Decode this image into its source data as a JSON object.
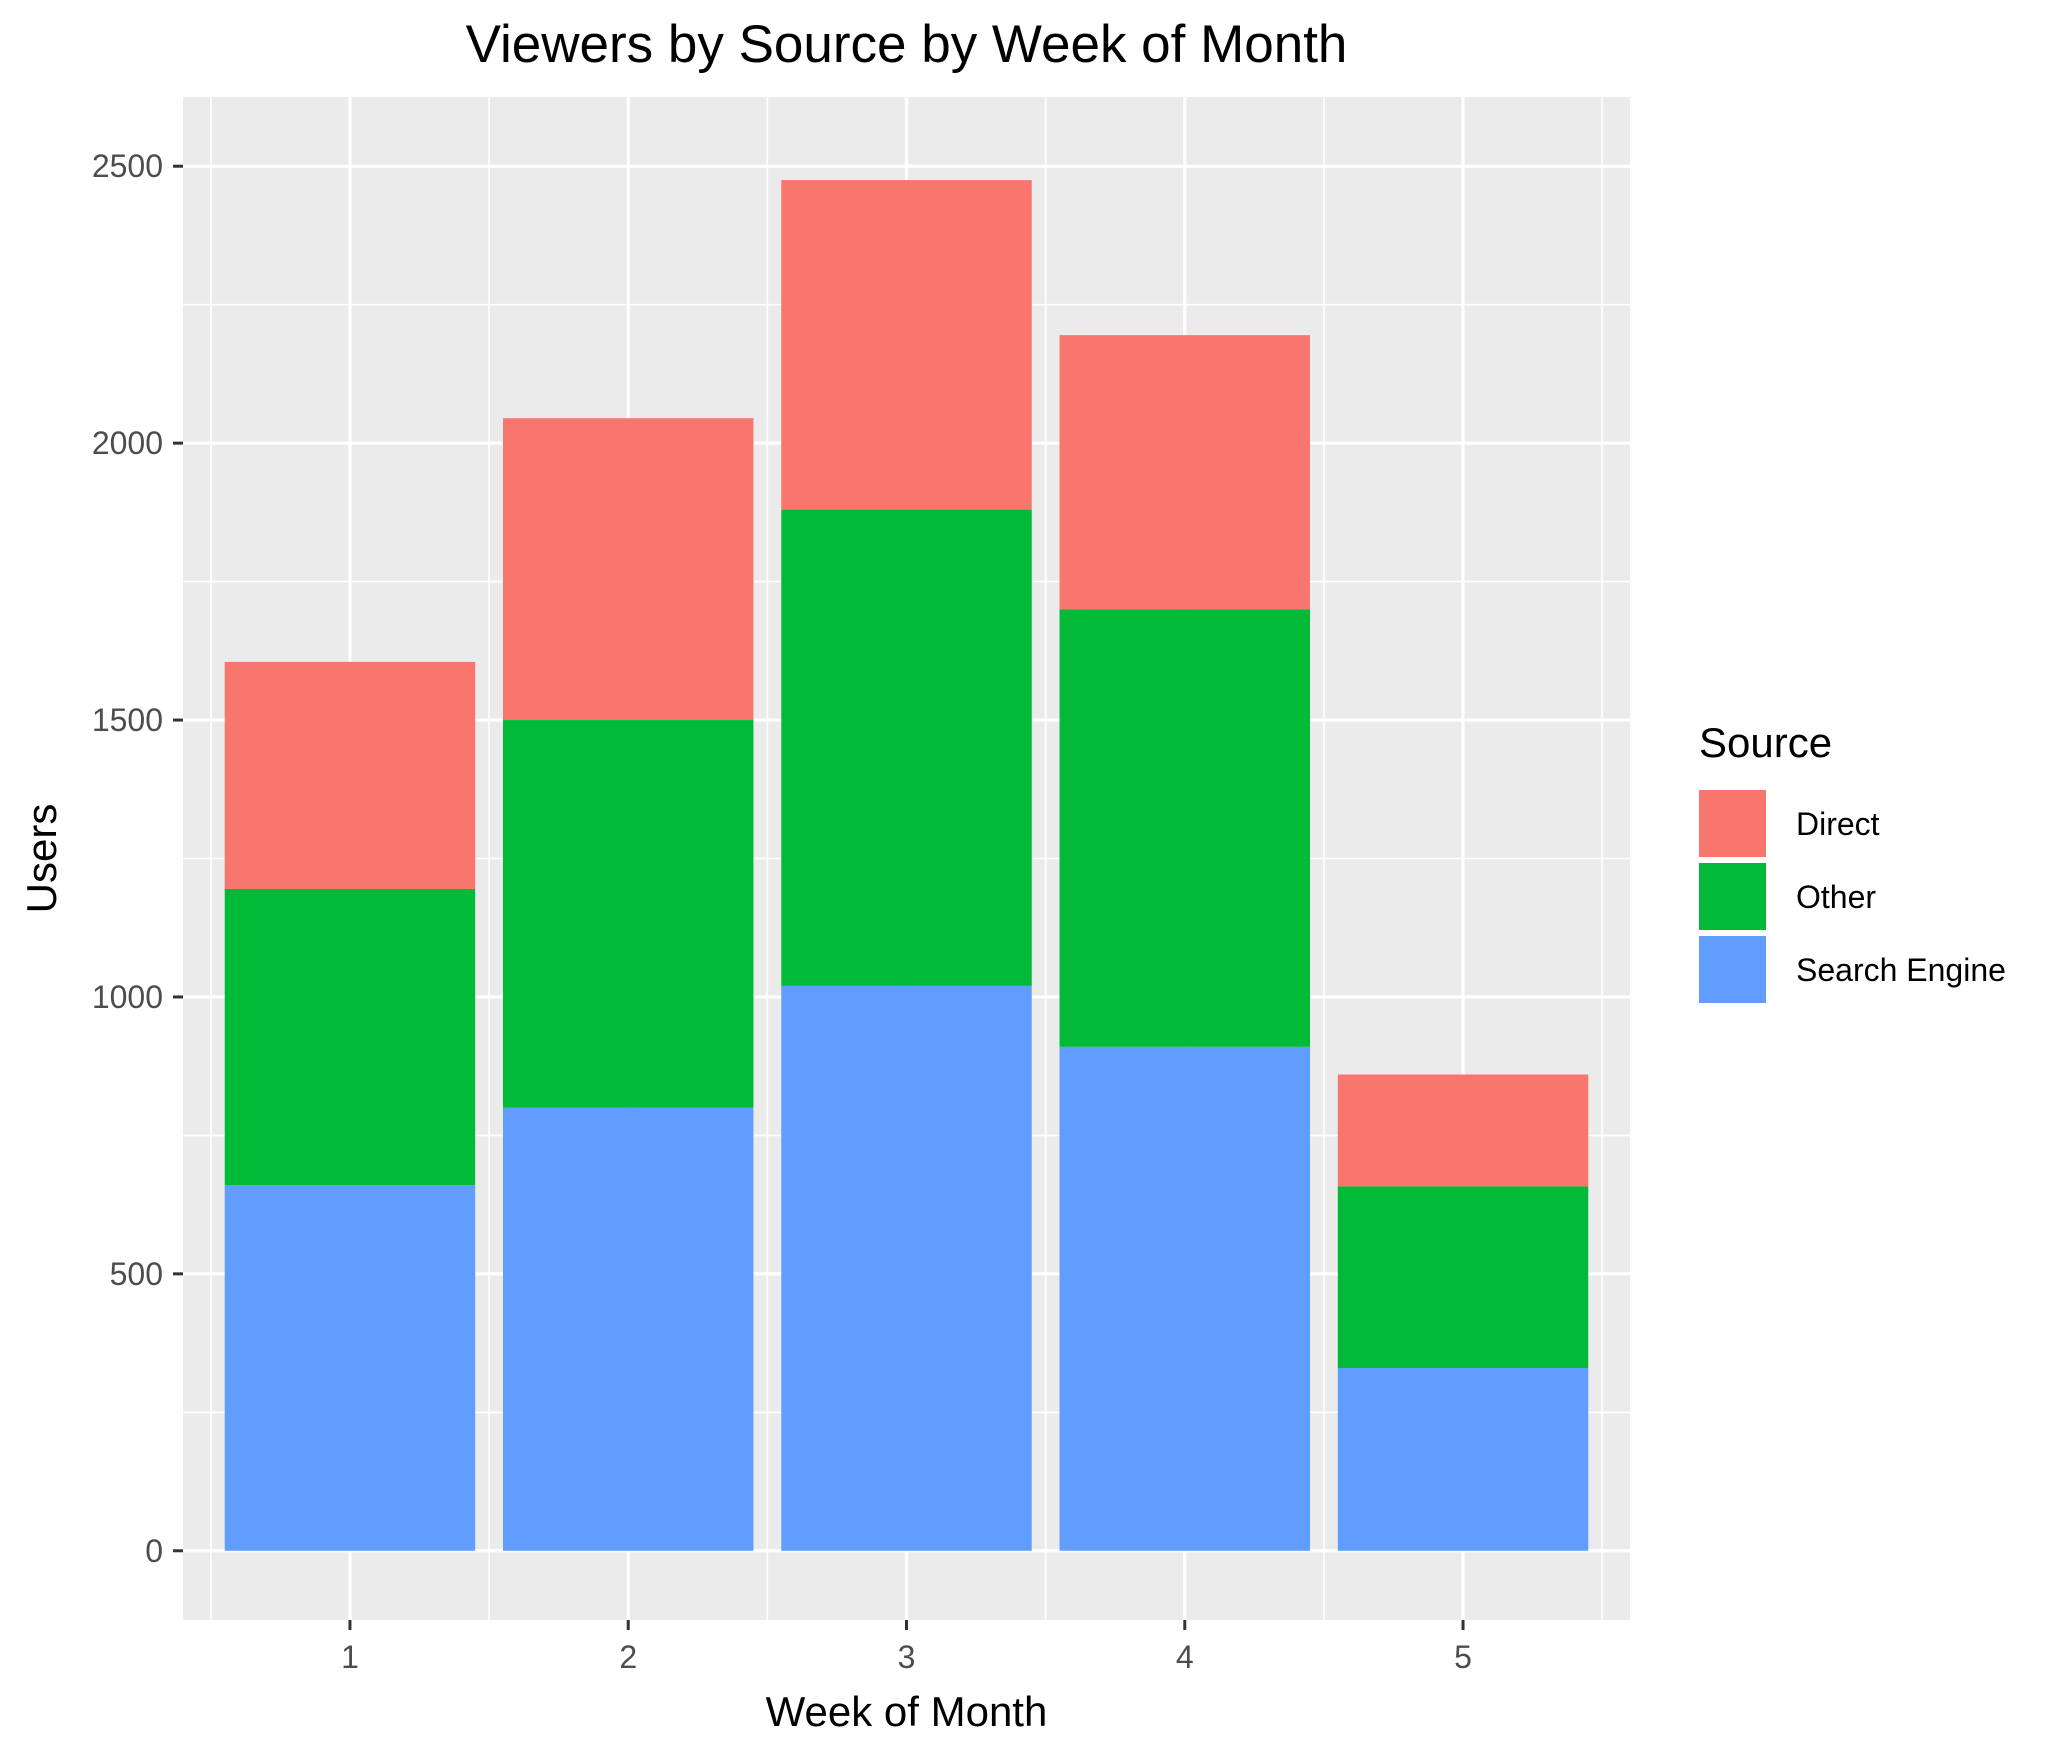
{
  "chart_data": {
    "type": "bar",
    "stacked": true,
    "title": "Viewers by Source by Week of Month",
    "xlabel": "Week of Month",
    "ylabel": "Users",
    "categories": [
      "1",
      "2",
      "3",
      "4",
      "5"
    ],
    "series": [
      {
        "name": "Search Engine",
        "color": "#619CFF",
        "values": [
          660,
          800,
          1020,
          910,
          330
        ]
      },
      {
        "name": "Other",
        "color": "#00BA38",
        "values": [
          535,
          700,
          860,
          790,
          328
        ]
      },
      {
        "name": "Direct",
        "color": "#F8766D",
        "values": [
          410,
          545,
          595,
          495,
          202
        ]
      }
    ],
    "ylim": [
      -125,
      2625
    ],
    "yticks": [
      0,
      500,
      1000,
      1500,
      2000,
      2500
    ],
    "ytick_labels": [
      "0",
      "500",
      "1000",
      "1500",
      "2000",
      "2500"
    ],
    "grid": true,
    "legend": {
      "title": "Source",
      "position": "right",
      "entries": [
        "Direct",
        "Other",
        "Search Engine"
      ]
    }
  }
}
